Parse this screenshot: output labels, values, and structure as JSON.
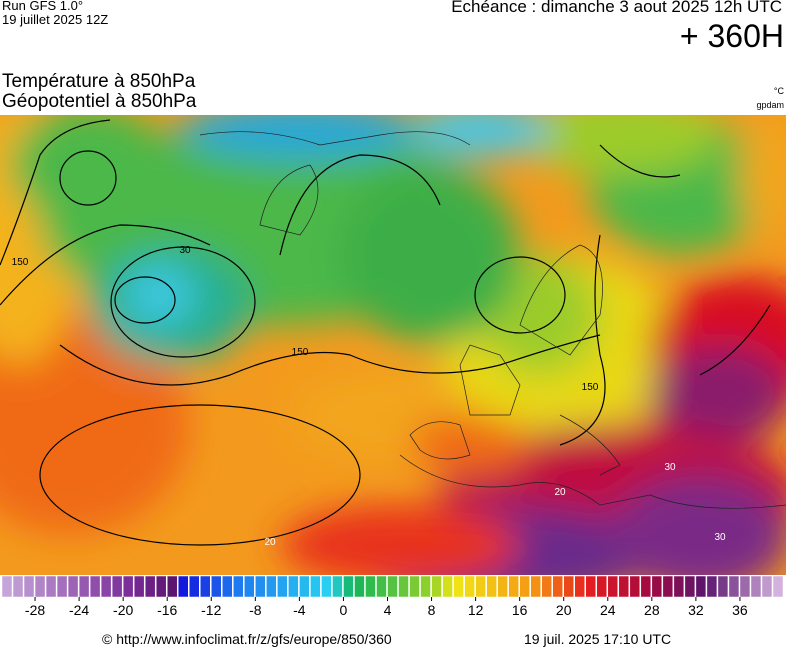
{
  "header": {
    "run": "Run GFS 1.0°",
    "run_date": "19 juillet 2025 12Z",
    "valid": "Echéance : dimanche 3 aout 2025 12h UTC",
    "lead": "+ 360H"
  },
  "fields": {
    "temperature": "Température à 850hPa",
    "geopotential": "Géopotentiel à 850hPa",
    "temperature_unit": "°C",
    "geopotential_unit": "gpdam"
  },
  "map": {
    "contour_labels": [
      "150",
      "150",
      "150",
      "30",
      "20",
      "30",
      "20",
      "30"
    ]
  },
  "colorbar": {
    "lim": [
      -31,
      40
    ],
    "ticks": [
      -28,
      -24,
      -20,
      -16,
      -12,
      -8,
      -4,
      0,
      4,
      8,
      12,
      16,
      20,
      24,
      28,
      32,
      36
    ]
  },
  "footer": {
    "source": "© http://www.infoclimat.fr/z/gfs/europe/850/360",
    "generated": "19 juil. 2025 17:10 UTC"
  }
}
